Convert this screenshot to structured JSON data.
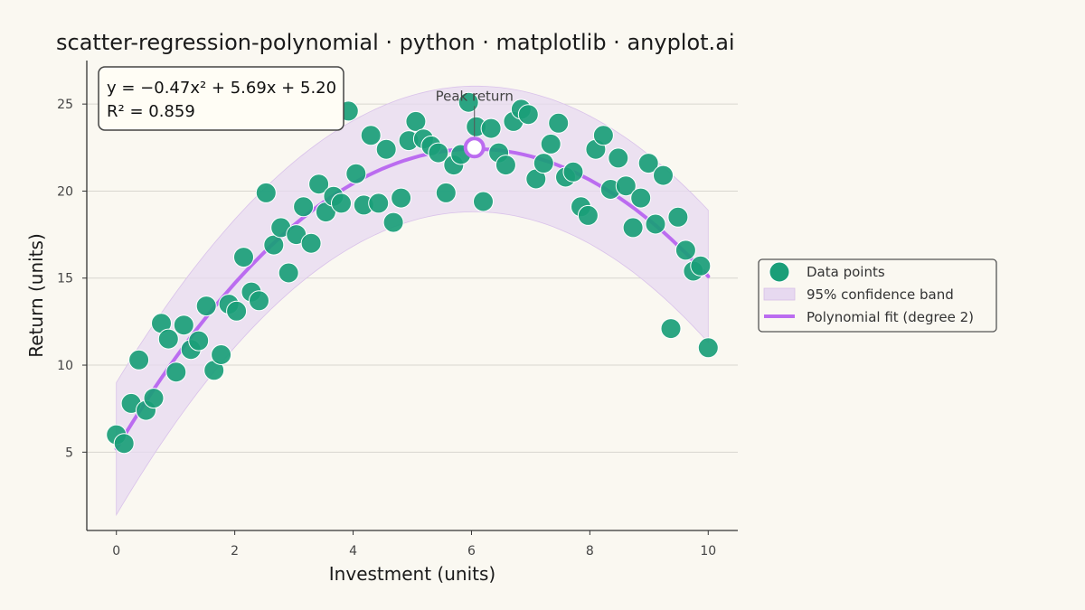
{
  "chart_data": {
    "type": "scatter",
    "title": "scatter-regression-polynomial · python · matplotlib · anyplot.ai",
    "xlabel": "Investment (units)",
    "ylabel": "Return (units)",
    "xlim": [
      -0.5,
      10.5
    ],
    "ylim": [
      0.5,
      27.5
    ],
    "xticks": [
      0,
      2,
      4,
      6,
      8,
      10
    ],
    "yticks": [
      5,
      10,
      15,
      20,
      25
    ],
    "grid": "horizontal",
    "legend_position": "right",
    "colors": {
      "points": "#1A9E78",
      "fit": "#BB6CF0",
      "band": "#E7D9F0",
      "peak_fill": "#FFFFFF"
    },
    "fit": {
      "coefficients": {
        "a": -0.47,
        "b": 5.69,
        "c": 5.2
      },
      "equation_line1": "y = −0.47x² + 5.69x + 5.20",
      "equation_line2": "R² = 0.859",
      "band_half_width": {
        "at_ends": 3.8,
        "at_center": 3.6
      }
    },
    "peak": {
      "x": 6.05,
      "y": 22.5,
      "label": "Peak return"
    },
    "legend": [
      {
        "name": "Data points",
        "kind": "marker"
      },
      {
        "name": "95% confidence band",
        "kind": "band"
      },
      {
        "name": "Polynomial fit (degree 2)",
        "kind": "line"
      }
    ],
    "points": [
      [
        0.0,
        6.0
      ],
      [
        0.13,
        5.5
      ],
      [
        0.25,
        7.8
      ],
      [
        0.38,
        10.3
      ],
      [
        0.5,
        7.4
      ],
      [
        0.63,
        8.1
      ],
      [
        0.76,
        12.4
      ],
      [
        0.88,
        11.5
      ],
      [
        1.01,
        9.6
      ],
      [
        1.14,
        12.3
      ],
      [
        1.26,
        10.9
      ],
      [
        1.39,
        11.4
      ],
      [
        1.52,
        13.4
      ],
      [
        1.65,
        9.7
      ],
      [
        1.77,
        10.6
      ],
      [
        1.9,
        13.5
      ],
      [
        2.03,
        13.1
      ],
      [
        2.15,
        16.2
      ],
      [
        2.28,
        14.2
      ],
      [
        2.41,
        13.7
      ],
      [
        2.53,
        19.9
      ],
      [
        2.66,
        16.9
      ],
      [
        2.78,
        17.9
      ],
      [
        2.91,
        15.3
      ],
      [
        3.04,
        17.5
      ],
      [
        3.16,
        19.1
      ],
      [
        3.29,
        17.0
      ],
      [
        3.42,
        20.4
      ],
      [
        3.54,
        18.8
      ],
      [
        3.67,
        19.7
      ],
      [
        3.8,
        19.3
      ],
      [
        3.92,
        24.6
      ],
      [
        4.05,
        21.0
      ],
      [
        4.18,
        19.2
      ],
      [
        4.3,
        23.2
      ],
      [
        4.43,
        19.3
      ],
      [
        4.56,
        22.4
      ],
      [
        4.68,
        18.2
      ],
      [
        4.81,
        19.6
      ],
      [
        4.94,
        22.9
      ],
      [
        5.06,
        24.0
      ],
      [
        5.19,
        23.0
      ],
      [
        5.32,
        22.6
      ],
      [
        5.44,
        22.2
      ],
      [
        5.57,
        19.9
      ],
      [
        5.7,
        21.5
      ],
      [
        5.82,
        22.1
      ],
      [
        5.95,
        25.1
      ],
      [
        6.08,
        23.7
      ],
      [
        6.2,
        19.4
      ],
      [
        6.33,
        23.6
      ],
      [
        6.46,
        22.2
      ],
      [
        6.58,
        21.5
      ],
      [
        6.71,
        24.0
      ],
      [
        6.84,
        24.7
      ],
      [
        6.96,
        24.4
      ],
      [
        7.09,
        20.7
      ],
      [
        7.22,
        21.6
      ],
      [
        7.34,
        22.7
      ],
      [
        7.47,
        23.9
      ],
      [
        7.59,
        20.8
      ],
      [
        7.72,
        21.1
      ],
      [
        7.85,
        19.1
      ],
      [
        7.97,
        18.6
      ],
      [
        8.1,
        22.4
      ],
      [
        8.23,
        23.2
      ],
      [
        8.35,
        20.1
      ],
      [
        8.48,
        21.9
      ],
      [
        8.61,
        20.3
      ],
      [
        8.73,
        17.9
      ],
      [
        8.86,
        19.6
      ],
      [
        8.99,
        21.6
      ],
      [
        9.11,
        18.1
      ],
      [
        9.24,
        20.9
      ],
      [
        9.37,
        12.1
      ],
      [
        9.49,
        18.5
      ],
      [
        9.62,
        16.6
      ],
      [
        9.75,
        15.4
      ],
      [
        9.87,
        15.7
      ],
      [
        10.0,
        11.0
      ]
    ]
  }
}
